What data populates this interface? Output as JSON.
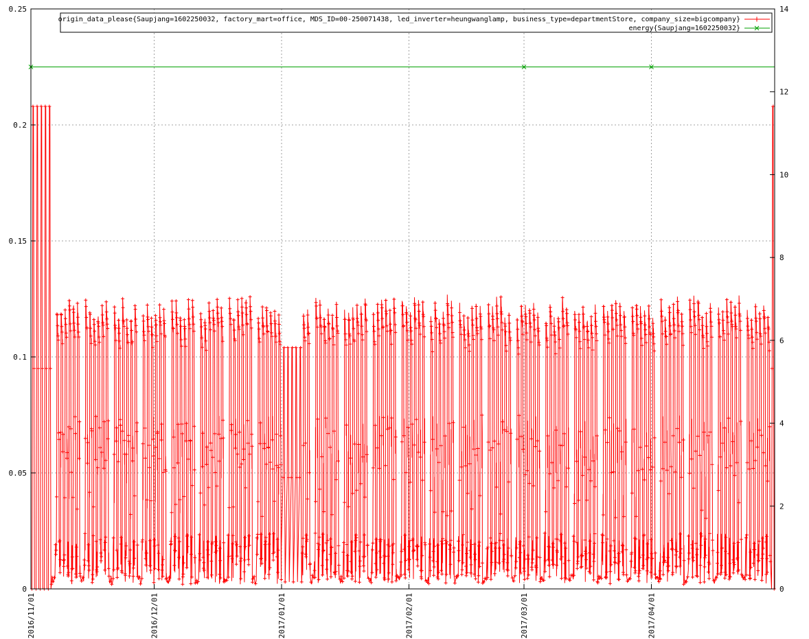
{
  "chart_data": {
    "type": "line",
    "grid": true,
    "legend_position": "top-right",
    "x_axis": {
      "type": "date",
      "range": [
        "2016-11-01",
        "2017-04-30"
      ],
      "tick_labels": [
        "2016/11/01",
        "2016/12/01",
        "2017/01/01",
        "2017/02/01",
        "2017/03/01",
        "2017/04/01"
      ]
    },
    "y_axis_left": {
      "range": [
        0,
        0.25
      ],
      "tick_labels": [
        "0",
        "0.05",
        "0.1",
        "0.15",
        "0.2",
        "0.25"
      ]
    },
    "y_axis_right": {
      "range": [
        0,
        14
      ],
      "tick_labels": [
        "0",
        "2",
        "4",
        "6",
        "8",
        "10",
        "12",
        "14"
      ]
    },
    "series": [
      {
        "name": "origin_data_please{Saupjang=1602250032, factory_mart=office, MDS_ID=00-250071438, led_inverter=heungwanglamp, business_type=departmentStore, company_size=bigcompany}",
        "axis": "left",
        "color": "#ff0000",
        "marker": "plus",
        "pattern": "daily cycle per weekday: peaks about 0.12-0.128 decaying to about 0.11 across the day, off-hour values 0-0.03; flat 0.104 / 0.048 around 2017/01/01-2017/01/05; 0.208 peaks in the first days of 2016/11 and on the last day",
        "daily_peak_range": [
          0.104,
          0.129
        ],
        "daily_low_range": [
          0,
          0.03
        ],
        "max": 0.208
      },
      {
        "name": "energy{Saupjang=1602250032}",
        "axis": "right",
        "color": "#00a000",
        "marker": "cross",
        "x": [
          "2016-11-01",
          "2017-03-01",
          "2017-04-01"
        ],
        "values": [
          12.6,
          12.6,
          12.6
        ]
      }
    ]
  }
}
